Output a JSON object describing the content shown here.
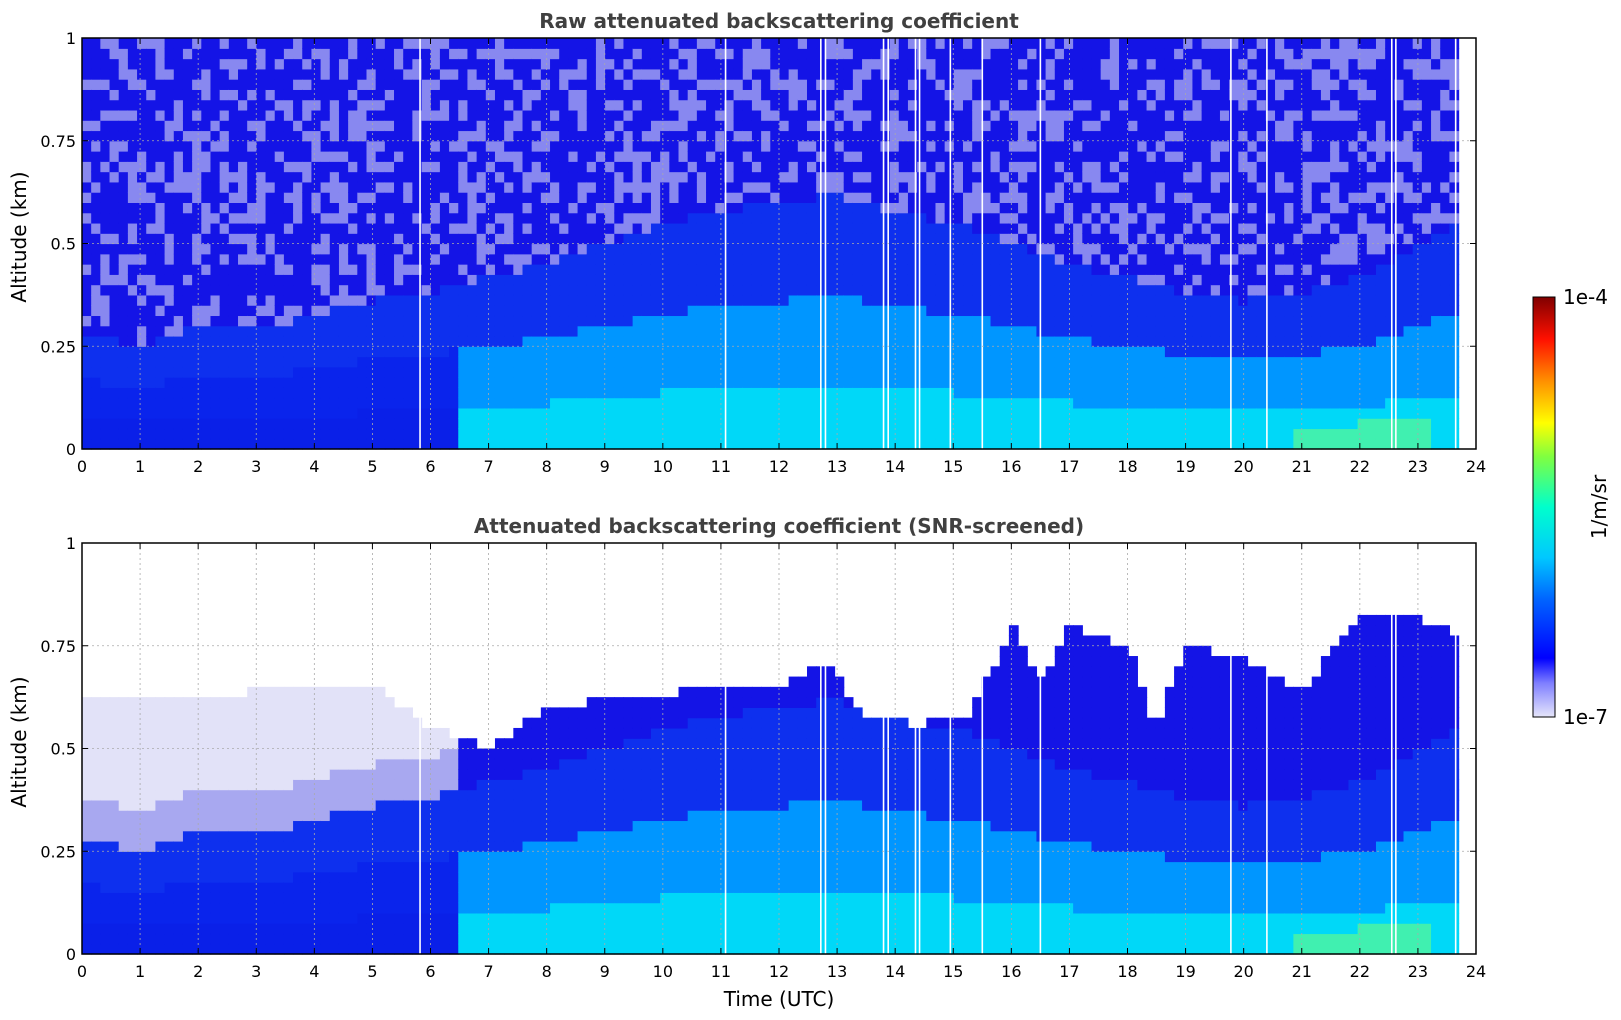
{
  "chart_data": [
    {
      "type": "heatmap",
      "title": "Raw attenuated backscattering coefficient",
      "xlabel": "",
      "ylabel": "Altitude (km)",
      "xlim": [
        0,
        24
      ],
      "ylim": [
        0,
        1
      ],
      "x_ticks": [
        "0",
        "1",
        "2",
        "3",
        "4",
        "5",
        "6",
        "7",
        "8",
        "9",
        "10",
        "11",
        "12",
        "13",
        "14",
        "15",
        "16",
        "17",
        "18",
        "19",
        "20",
        "21",
        "22",
        "23",
        "24"
      ],
      "y_ticks": [
        "0",
        "0.25",
        "0.5",
        "0.75",
        "1"
      ],
      "grid": true,
      "screened": false,
      "boundary_layer_top_km": {
        "time": [
          0,
          1,
          2,
          3,
          4,
          5,
          6,
          7,
          8,
          9,
          10,
          11,
          12,
          13,
          14,
          15,
          16,
          17,
          18,
          19,
          20,
          21,
          22,
          23,
          23.7
        ],
        "height": [
          0.28,
          0.25,
          0.3,
          0.29,
          0.33,
          0.36,
          0.38,
          0.42,
          0.45,
          0.5,
          0.55,
          0.58,
          0.6,
          0.62,
          0.58,
          0.55,
          0.5,
          0.45,
          0.42,
          0.38,
          0.36,
          0.38,
          0.42,
          0.5,
          0.55
        ]
      },
      "data_gaps_utc": [
        5.82,
        11.08,
        12.72,
        12.8,
        13.8,
        13.88,
        14.35,
        14.42,
        14.95,
        15.5,
        16.5,
        19.78,
        20.4,
        22.55,
        22.62,
        23.65
      ]
    },
    {
      "type": "heatmap",
      "title": "Attenuated backscattering coefficient (SNR-screened)",
      "xlabel": "Time (UTC)",
      "ylabel": "Altitude (km)",
      "xlim": [
        0,
        24
      ],
      "ylim": [
        0,
        1
      ],
      "x_ticks": [
        "0",
        "1",
        "2",
        "3",
        "4",
        "5",
        "6",
        "7",
        "8",
        "9",
        "10",
        "11",
        "12",
        "13",
        "14",
        "15",
        "16",
        "17",
        "18",
        "19",
        "20",
        "21",
        "22",
        "23",
        "24"
      ],
      "y_ticks": [
        "0",
        "0.25",
        "0.5",
        "0.75",
        "1"
      ],
      "grid": true,
      "screened": true,
      "signal_top_km": {
        "time": [
          0,
          1,
          2,
          3,
          4,
          5,
          6,
          7,
          8,
          9,
          10,
          11,
          12,
          12.8,
          13.5,
          14.5,
          15.3,
          16,
          16.5,
          17,
          18,
          18.5,
          19,
          20,
          21,
          22,
          23,
          23.7
        ],
        "height": [
          0.62,
          0.62,
          0.62,
          0.64,
          0.66,
          0.66,
          0.55,
          0.5,
          0.6,
          0.62,
          0.63,
          0.66,
          0.64,
          0.72,
          0.57,
          0.56,
          0.58,
          0.8,
          0.66,
          0.8,
          0.75,
          0.55,
          0.75,
          0.72,
          0.64,
          0.82,
          0.82,
          0.78
        ]
      },
      "boundary_layer_top_km": {
        "time": [
          0,
          1,
          2,
          3,
          4,
          5,
          6,
          7,
          8,
          9,
          10,
          11,
          12,
          13,
          14,
          15,
          16,
          17,
          18,
          19,
          20,
          21,
          22,
          23,
          23.7
        ],
        "height": [
          0.28,
          0.25,
          0.3,
          0.29,
          0.33,
          0.36,
          0.38,
          0.42,
          0.45,
          0.5,
          0.55,
          0.58,
          0.6,
          0.62,
          0.58,
          0.55,
          0.5,
          0.45,
          0.42,
          0.38,
          0.36,
          0.38,
          0.42,
          0.5,
          0.55
        ]
      },
      "data_gaps_utc": [
        5.82,
        11.08,
        12.72,
        12.8,
        13.8,
        13.88,
        14.35,
        14.42,
        14.95,
        15.5,
        16.5,
        19.78,
        20.4,
        22.55,
        22.62,
        23.65
      ]
    }
  ],
  "colorbar": {
    "label": "1/m/sr",
    "max_label": "1e-4",
    "min_label": "1e-7",
    "scale": "log",
    "colormap": [
      "#e6e6fa",
      "#0000ff",
      "#00c8ff",
      "#00ffcc",
      "#ffff00",
      "#ff8000",
      "#ff0000",
      "#800000"
    ]
  }
}
